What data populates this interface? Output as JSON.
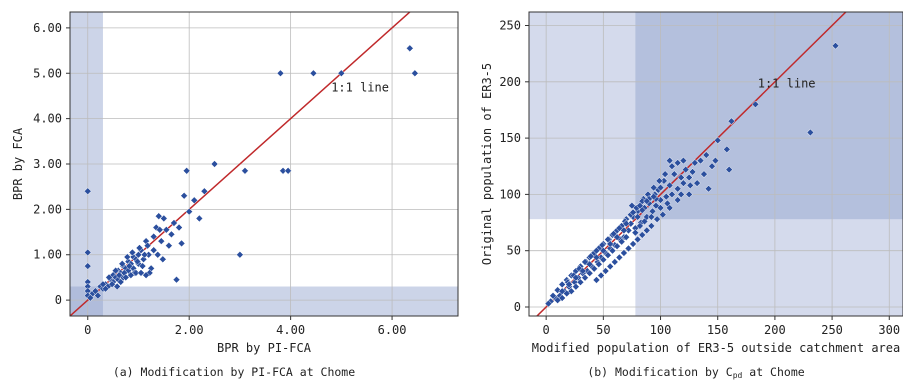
{
  "chart_data": [
    {
      "type": "scatter",
      "caption": "(a) Modification by PI-FCA at Chome",
      "xlabel": "BPR by PI-FCA",
      "ylabel": "BPR by FCA",
      "xlim": [
        -0.35,
        7.3
      ],
      "ylim": [
        -0.35,
        6.35
      ],
      "xticks": [
        0,
        2,
        4,
        6
      ],
      "xtick_labels": [
        "0",
        "2.00",
        "4.00",
        "6.00"
      ],
      "yticks": [
        0,
        1,
        2,
        3,
        4,
        5,
        6
      ],
      "ytick_labels": [
        "0",
        "1.00",
        "2.00",
        "3.00",
        "4.00",
        "5.00",
        "6.00"
      ],
      "grid": true,
      "ref_line_label": "1:1 line",
      "ref_line_label_pos": [
        4.8,
        4.6
      ],
      "shaded_x_max": 0.3,
      "shaded_y_max": 0.3,
      "marker_color": "#2b4f9e",
      "line_color": "#c0292b",
      "shade_color": "#8e9fcc",
      "points": [
        [
          0,
          2.4
        ],
        [
          0,
          1.05
        ],
        [
          0,
          0.75
        ],
        [
          0,
          0.4
        ],
        [
          0,
          0.3
        ],
        [
          0,
          0.2
        ],
        [
          0,
          0.1
        ],
        [
          0.05,
          0.05
        ],
        [
          0.1,
          0.15
        ],
        [
          0.15,
          0.2
        ],
        [
          0.2,
          0.1
        ],
        [
          0.25,
          0.3
        ],
        [
          0.3,
          0.25
        ],
        [
          0.35,
          0.35
        ],
        [
          0.4,
          0.3
        ],
        [
          0.45,
          0.45
        ],
        [
          0.5,
          0.4
        ],
        [
          0.5,
          0.55
        ],
        [
          0.55,
          0.5
        ],
        [
          0.6,
          0.45
        ],
        [
          0.6,
          0.65
        ],
        [
          0.65,
          0.6
        ],
        [
          0.7,
          0.5
        ],
        [
          0.7,
          0.75
        ],
        [
          0.75,
          0.7
        ],
        [
          0.8,
          0.65
        ],
        [
          0.8,
          0.85
        ],
        [
          0.85,
          0.8
        ],
        [
          0.9,
          0.7
        ],
        [
          0.9,
          0.95
        ],
        [
          0.95,
          0.9
        ],
        [
          1.0,
          1.0
        ],
        [
          1.0,
          0.8
        ],
        [
          1.05,
          1.1
        ],
        [
          1.1,
          0.9
        ],
        [
          1.15,
          1.3
        ],
        [
          1.2,
          1.0
        ],
        [
          1.25,
          0.7
        ],
        [
          1.3,
          1.4
        ],
        [
          1.35,
          1.6
        ],
        [
          1.4,
          1.85
        ],
        [
          1.45,
          1.3
        ],
        [
          1.5,
          1.8
        ],
        [
          1.55,
          1.55
        ],
        [
          1.6,
          1.2
        ],
        [
          1.65,
          1.45
        ],
        [
          1.7,
          1.7
        ],
        [
          1.75,
          0.45
        ],
        [
          1.8,
          1.6
        ],
        [
          1.85,
          1.25
        ],
        [
          1.9,
          2.3
        ],
        [
          1.95,
          2.85
        ],
        [
          2.0,
          1.95
        ],
        [
          2.1,
          2.2
        ],
        [
          2.2,
          1.8
        ],
        [
          2.3,
          2.4
        ],
        [
          2.5,
          3.0
        ],
        [
          3.0,
          1.0
        ],
        [
          3.1,
          2.85
        ],
        [
          3.8,
          5.0
        ],
        [
          3.85,
          2.85
        ],
        [
          3.95,
          2.85
        ],
        [
          4.45,
          5.0
        ],
        [
          5.0,
          5.0
        ],
        [
          6.35,
          5.55
        ],
        [
          6.45,
          5.0
        ],
        [
          0.3,
          0.35
        ],
        [
          0.35,
          0.25
        ],
        [
          0.42,
          0.5
        ],
        [
          0.48,
          0.35
        ],
        [
          0.55,
          0.65
        ],
        [
          0.62,
          0.55
        ],
        [
          0.68,
          0.8
        ],
        [
          0.72,
          0.6
        ],
        [
          0.78,
          0.95
        ],
        [
          0.82,
          0.75
        ],
        [
          0.88,
          1.05
        ],
        [
          0.92,
          0.6
        ],
        [
          0.98,
          0.85
        ],
        [
          1.02,
          1.15
        ],
        [
          1.08,
          0.75
        ],
        [
          1.12,
          1.0
        ],
        [
          1.18,
          1.2
        ],
        [
          1.22,
          0.6
        ],
        [
          1.3,
          1.1
        ],
        [
          1.38,
          1.0
        ],
        [
          1.42,
          1.55
        ],
        [
          1.48,
          0.9
        ],
        [
          0.58,
          0.3
        ],
        [
          0.65,
          0.4
        ],
        [
          0.75,
          0.5
        ],
        [
          0.85,
          0.55
        ],
        [
          0.95,
          0.6
        ],
        [
          1.05,
          0.6
        ],
        [
          1.15,
          0.55
        ]
      ]
    },
    {
      "type": "scatter",
      "caption": "(b) Modification by C",
      "caption_sub": "pd",
      "caption_tail": " at Chome",
      "xlabel": "Modified population of ER3-5 outside catchment area",
      "ylabel": "Original population of ER3-5",
      "xlim": [
        -15,
        312
      ],
      "ylim": [
        -8,
        262
      ],
      "xticks": [
        0,
        50,
        100,
        150,
        200,
        250,
        300
      ],
      "xtick_labels": [
        "0",
        "50",
        "100",
        "150",
        "200",
        "250",
        "300"
      ],
      "yticks": [
        0,
        50,
        100,
        150,
        200,
        250
      ],
      "ytick_labels": [
        "0",
        "50",
        "100",
        "150",
        "200",
        "250"
      ],
      "grid": true,
      "ref_line_label": "1:1 line",
      "ref_line_label_pos": [
        185,
        195
      ],
      "threshold_x": 78,
      "threshold_y": 78,
      "marker_color": "#2b4f9e",
      "line_color": "#c0292b",
      "shade_color": "#8e9fcc",
      "points": [
        [
          253,
          232
        ],
        [
          231,
          155
        ],
        [
          183,
          180
        ],
        [
          162,
          165
        ],
        [
          158,
          140
        ],
        [
          150,
          148
        ],
        [
          148,
          130
        ],
        [
          160,
          122
        ],
        [
          140,
          135
        ],
        [
          135,
          130
        ],
        [
          130,
          128
        ],
        [
          128,
          120
        ],
        [
          125,
          115
        ],
        [
          122,
          122
        ],
        [
          120,
          110
        ],
        [
          118,
          115
        ],
        [
          115,
          105
        ],
        [
          112,
          118
        ],
        [
          110,
          100
        ],
        [
          108,
          108
        ],
        [
          105,
          98
        ],
        [
          103,
          112
        ],
        [
          100,
          95
        ],
        [
          98,
          104
        ],
        [
          96,
          90
        ],
        [
          95,
          100
        ],
        [
          93,
          85
        ],
        [
          90,
          92
        ],
        [
          88,
          80
        ],
        [
          86,
          88
        ],
        [
          85,
          96
        ],
        [
          83,
          75
        ],
        [
          80,
          85
        ],
        [
          78,
          70
        ],
        [
          76,
          80
        ],
        [
          75,
          90
        ],
        [
          72,
          68
        ],
        [
          70,
          78
        ],
        [
          68,
          62
        ],
        [
          66,
          72
        ],
        [
          65,
          60
        ],
        [
          62,
          68
        ],
        [
          60,
          55
        ],
        [
          58,
          64
        ],
        [
          56,
          52
        ],
        [
          55,
          60
        ],
        [
          52,
          48
        ],
        [
          50,
          56
        ],
        [
          48,
          44
        ],
        [
          46,
          52
        ],
        [
          45,
          40
        ],
        [
          42,
          48
        ],
        [
          40,
          36
        ],
        [
          38,
          44
        ],
        [
          36,
          32
        ],
        [
          35,
          40
        ],
        [
          32,
          30
        ],
        [
          30,
          36
        ],
        [
          28,
          26
        ],
        [
          26,
          32
        ],
        [
          25,
          22
        ],
        [
          22,
          28
        ],
        [
          20,
          18
        ],
        [
          18,
          24
        ],
        [
          16,
          14
        ],
        [
          14,
          20
        ],
        [
          12,
          10
        ],
        [
          10,
          15
        ],
        [
          8,
          8
        ],
        [
          6,
          10
        ],
        [
          4,
          5
        ],
        [
          2,
          3
        ],
        [
          115,
          95
        ],
        [
          108,
          88
        ],
        [
          102,
          82
        ],
        [
          97,
          78
        ],
        [
          92,
          72
        ],
        [
          88,
          68
        ],
        [
          84,
          64
        ],
        [
          80,
          60
        ],
        [
          76,
          56
        ],
        [
          72,
          52
        ],
        [
          68,
          48
        ],
        [
          64,
          44
        ],
        [
          60,
          40
        ],
        [
          56,
          36
        ],
        [
          52,
          32
        ],
        [
          48,
          28
        ],
        [
          44,
          24
        ],
        [
          110,
          125
        ],
        [
          104,
          118
        ],
        [
          99,
          112
        ],
        [
          94,
          106
        ],
        [
          89,
          100
        ],
        [
          84,
          94
        ],
        [
          79,
          88
        ],
        [
          74,
          82
        ],
        [
          69,
          76
        ],
        [
          64,
          70
        ],
        [
          59,
          65
        ],
        [
          54,
          60
        ],
        [
          49,
          55
        ],
        [
          44,
          50
        ],
        [
          39,
          45
        ],
        [
          34,
          40
        ],
        [
          29,
          34
        ],
        [
          24,
          28
        ],
        [
          19,
          22
        ],
        [
          125,
          100
        ],
        [
          132,
          110
        ],
        [
          138,
          118
        ],
        [
          145,
          125
        ],
        [
          142,
          105
        ],
        [
          118,
          100
        ],
        [
          126,
          108
        ],
        [
          106,
          92
        ],
        [
          100,
          88
        ],
        [
          92,
          80
        ],
        [
          86,
          76
        ],
        [
          82,
          72
        ],
        [
          78,
          66
        ],
        [
          70,
          62
        ],
        [
          66,
          58
        ],
        [
          62,
          54
        ],
        [
          58,
          50
        ],
        [
          54,
          46
        ],
        [
          50,
          42
        ],
        [
          46,
          38
        ],
        [
          42,
          34
        ],
        [
          38,
          30
        ],
        [
          34,
          26
        ],
        [
          30,
          22
        ],
        [
          26,
          18
        ],
        [
          22,
          14
        ],
        [
          18,
          12
        ],
        [
          14,
          8
        ],
        [
          10,
          6
        ],
        [
          96,
          96
        ],
        [
          90,
          96
        ],
        [
          84,
          86
        ],
        [
          80,
          80
        ],
        [
          74,
          74
        ],
        [
          68,
          68
        ],
        [
          62,
          62
        ],
        [
          56,
          56
        ],
        [
          50,
          50
        ],
        [
          44,
          44
        ],
        [
          38,
          38
        ],
        [
          32,
          32
        ],
        [
          26,
          26
        ],
        [
          20,
          20
        ],
        [
          14,
          14
        ],
        [
          115,
          128
        ],
        [
          120,
          130
        ],
        [
          108,
          130
        ],
        [
          100,
          106
        ],
        [
          94,
          98
        ],
        [
          88,
          94
        ],
        [
          82,
          90
        ],
        [
          76,
          84
        ],
        [
          70,
          74
        ]
      ]
    }
  ]
}
